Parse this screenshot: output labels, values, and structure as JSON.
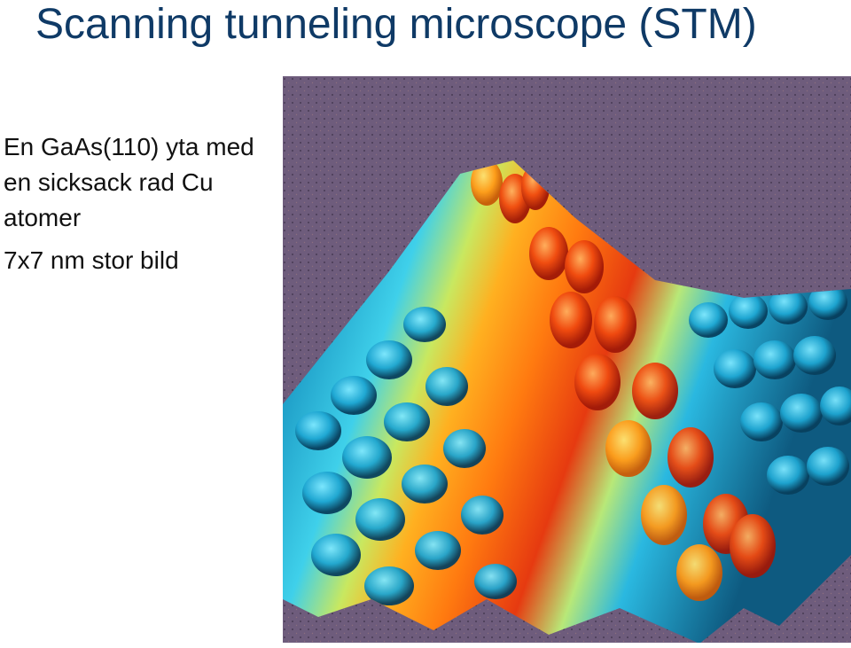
{
  "slide": {
    "title": "Scanning tunneling microscope (STM)",
    "caption_lines": [
      "En GaAs(110) yta med",
      "en sicksack rad Cu",
      "atomer"
    ],
    "size_note": "7x7 nm stor bild"
  },
  "colors": {
    "title": "#0f3a66",
    "text": "#111111",
    "image_background": "#6e5c7c",
    "surface_low": "#0a4a6e",
    "surface_mid": "#29c4e8",
    "surface_ridge": "#ff7a10",
    "surface_peak": "#d8200c"
  }
}
